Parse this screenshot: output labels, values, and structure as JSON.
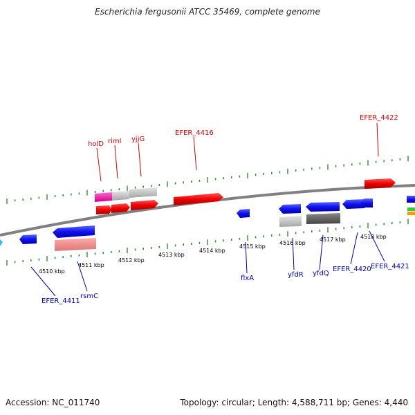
{
  "title": "Escherichia fergusonii ATCC 35469, complete genome",
  "footer": {
    "accession": "Accession: NC_011740",
    "summary": "Topology: circular; Length: 4,588,711 bp; Genes: 4,440"
  },
  "colors": {
    "forward_cds": "#ee0000",
    "reverse_cds": "#0000dd",
    "backbone": "#888888",
    "ticks": "#2f8f2f",
    "label_top": "#cc0000",
    "label_bottom": "#0000aa"
  },
  "scale_labels": [
    "4510 kbp",
    "4511 kbp",
    "4512 kbp",
    "4513 kbp",
    "4514 kbp",
    "4515 kbp",
    "4516 kbp",
    "4517 kbp",
    "4518 kbp"
  ],
  "top_labels": [
    "holD",
    "rimI",
    "yjjG",
    "EFER_4416",
    "EFER_4422"
  ],
  "bottom_labels": [
    "EFER_4411",
    "rsmC",
    "flxA",
    "yfdR",
    "yfdQ",
    "EFER_4420",
    "EFER_4421"
  ]
}
